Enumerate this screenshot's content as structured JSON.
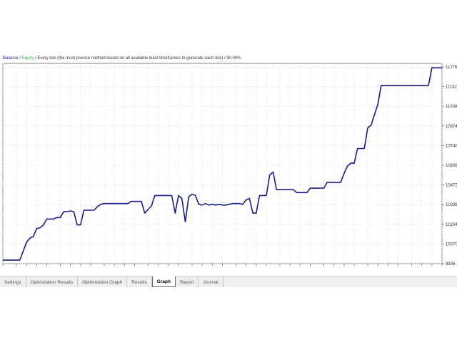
{
  "legend": {
    "balance": "Balance",
    "separator": "/",
    "equity": "Equity",
    "description": "/ Every tick (the most precise method based on all available least timeframes to generate each tick) / 90.00%"
  },
  "tabs": [
    {
      "label": "Settings",
      "active": false
    },
    {
      "label": "Optimization Results",
      "active": false
    },
    {
      "label": "Optimization Graph",
      "active": false
    },
    {
      "label": "Results",
      "active": false
    },
    {
      "label": "Graph",
      "active": true
    },
    {
      "label": "Report",
      "active": false
    },
    {
      "label": "Journal",
      "active": false
    }
  ],
  "colors": {
    "balance_line": "#1a1a8c",
    "grid": "#dcdcdc",
    "axis": "#808080"
  },
  "chart_data": {
    "type": "line",
    "ylim": [
      9936,
      11300
    ],
    "xlim": [
      0,
      130
    ],
    "x_ticks": [
      0,
      4,
      7,
      10,
      13,
      17,
      20,
      23,
      26,
      30,
      33,
      36,
      39,
      43,
      46,
      49,
      52,
      56,
      59,
      62,
      65,
      69,
      72,
      75,
      78,
      82,
      85,
      88,
      91,
      95,
      98,
      101,
      104,
      108,
      111,
      114,
      117,
      121,
      124,
      127,
      130
    ],
    "y_ticks": [
      9936,
      10070,
      10204,
      10338,
      10472,
      10606,
      10740,
      10874,
      11008,
      11142,
      11276
    ],
    "series": [
      {
        "x": [
          0,
          5,
          6,
          7,
          8,
          9,
          10,
          11,
          12,
          13,
          14,
          15,
          16,
          17,
          18,
          19,
          20,
          21,
          22,
          23,
          24,
          25,
          26,
          27,
          28,
          29,
          30,
          31,
          32,
          33,
          34,
          35,
          36,
          37,
          38,
          39,
          40,
          41,
          42,
          43,
          44,
          45,
          46,
          47,
          48,
          49,
          50,
          51,
          52,
          53,
          54,
          55,
          56,
          57,
          58,
          59,
          60,
          61,
          62,
          63,
          64,
          65,
          66,
          67,
          68,
          69,
          70,
          71,
          72,
          73,
          74,
          75,
          76,
          77,
          78,
          79,
          80,
          81,
          82,
          83,
          84,
          85,
          86,
          87,
          88,
          89,
          90,
          91,
          92,
          93,
          94,
          95,
          96,
          97,
          98,
          99,
          100,
          101,
          102,
          103,
          104,
          105,
          106,
          107,
          108,
          109,
          110,
          111,
          112,
          113,
          114,
          115,
          116,
          117,
          118,
          119,
          120,
          121,
          122,
          123,
          124,
          125,
          126,
          127,
          128,
          129,
          130
        ],
        "y": [
          9960,
          9960,
          10020,
          10080,
          10110,
          10120,
          10175,
          10180,
          10200,
          10240,
          10240,
          10240,
          10250,
          10250,
          10290,
          10290,
          10295,
          10290,
          10200,
          10200,
          10300,
          10300,
          10300,
          10300,
          10325,
          10340,
          10345,
          10345,
          10345,
          10345,
          10345,
          10345,
          10345,
          10345,
          10360,
          10360,
          10360,
          10360,
          10280,
          10305,
          10330,
          10400,
          10400,
          10400,
          10400,
          10400,
          10400,
          10280,
          10400,
          10380,
          10220,
          10390,
          10410,
          10400,
          10340,
          10335,
          10345,
          10335,
          10340,
          10335,
          10340,
          10335,
          10335,
          10340,
          10345,
          10345,
          10345,
          10340,
          10370,
          10380,
          10280,
          10280,
          10400,
          10400,
          10400,
          10540,
          10560,
          10440,
          10440,
          10440,
          10440,
          10440,
          10440,
          10420,
          10420,
          10420,
          10420,
          10450,
          10450,
          10450,
          10450,
          10450,
          10490,
          10490,
          10490,
          10490,
          10490,
          10550,
          10600,
          10620,
          10620,
          10720,
          10720,
          10720,
          10860,
          10880,
          10950,
          11020,
          11150,
          11150,
          11150,
          11150,
          11150,
          11150,
          11150,
          11150,
          11150,
          11150,
          11150,
          11150,
          11150,
          11150,
          11150,
          11270,
          11270,
          11270,
          11270
        ]
      }
    ]
  }
}
